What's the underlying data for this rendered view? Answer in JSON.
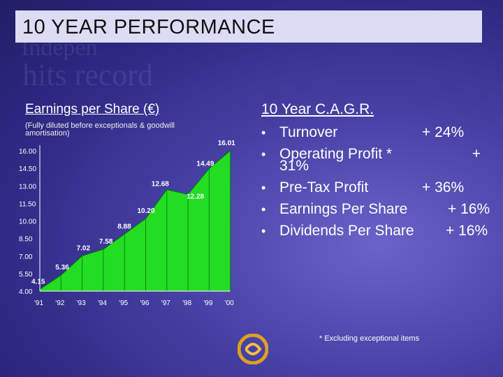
{
  "title": "10 YEAR PERFORMANCE",
  "eps_section": {
    "heading": "Earnings per Share (€)",
    "subheading": "(Fully diluted before exceptionals & goodwill amortisation)"
  },
  "chart_data": {
    "type": "area",
    "title": "Earnings per Share (€)",
    "x": [
      "'91",
      "'92",
      "'93",
      "'94",
      "'95",
      "'96",
      "'97",
      "'98",
      "'99",
      "'00"
    ],
    "values": [
      4.15,
      5.36,
      7.02,
      7.58,
      8.88,
      10.2,
      12.68,
      12.28,
      14.49,
      16.01
    ],
    "data_labels": [
      "4.15",
      "5.36",
      "7.02",
      "7.58",
      "8.88",
      "10.20",
      "12.68",
      "12.28",
      "14.49",
      "16.01"
    ],
    "yticks": [
      "16.00",
      "14.50",
      "13.00",
      "11.50",
      "10.00",
      "8.50",
      "7.00",
      "5.50",
      "4.00"
    ],
    "ylim": [
      4.0,
      16.0
    ],
    "fill_color": "#22dd22",
    "grid": false
  },
  "cagr": {
    "heading": "10 Year C.A.G.R.",
    "items": [
      {
        "label": "Turnover",
        "value": "+ 24%"
      },
      {
        "label": "Operating Profit *",
        "value": "+",
        "value_cont": "31%"
      },
      {
        "label": "Pre-Tax Profit",
        "value": "+ 36%"
      },
      {
        "label": "Earnings Per Share",
        "value": "+ 16%"
      },
      {
        "label": "Dividends Per Share",
        "value": "+ 16%"
      }
    ],
    "bullet": "•"
  },
  "footnote": "* Excluding exceptional items",
  "logo_icon": "swirl-logo-icon"
}
